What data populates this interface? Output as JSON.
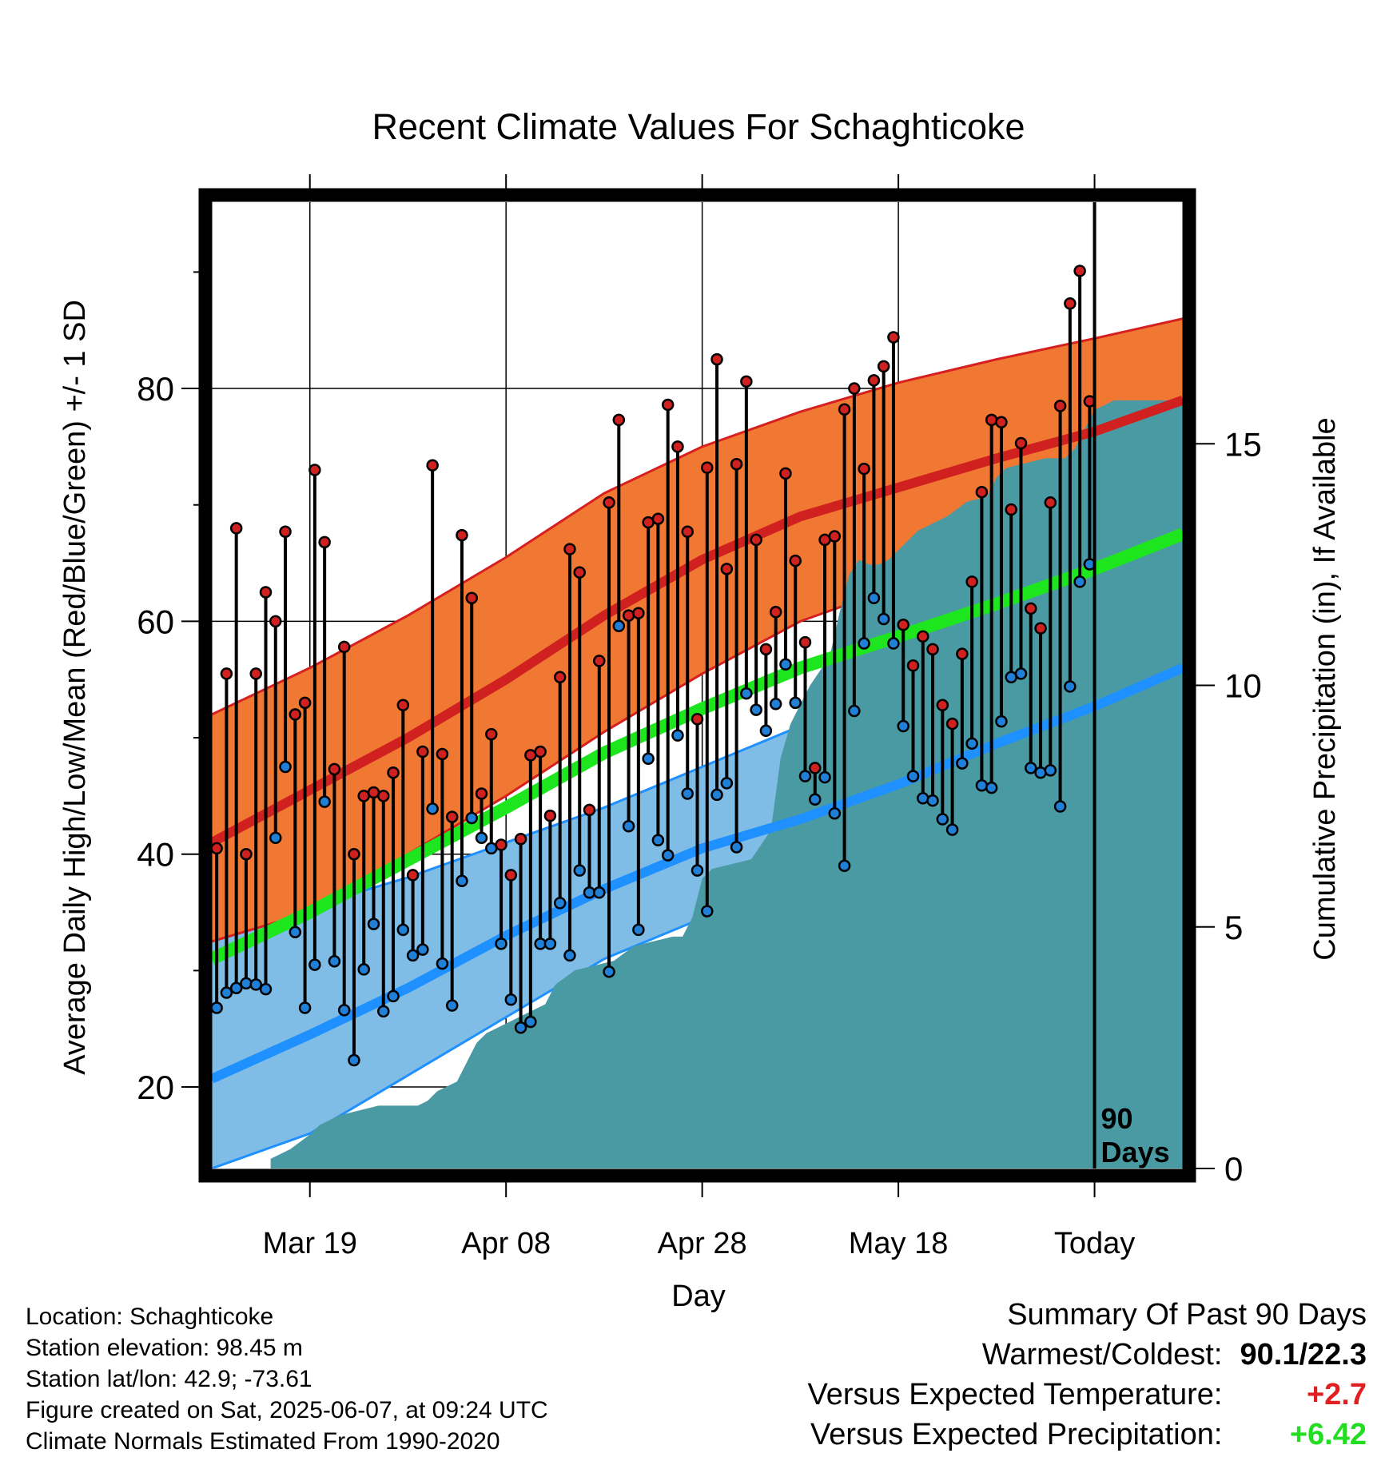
{
  "chart_data": {
    "type": "line",
    "title": "Recent Climate Values For Schaghticoke",
    "xlabel": "Day",
    "ylabel": "Average Daily High/Low/Mean (Red/Blue/Green) +/- 1 SD",
    "y2label": "Cumulative Precipitation (in), If Available",
    "x_ticks": [
      {
        "day": 10,
        "label": "Mar 19"
      },
      {
        "day": 30,
        "label": "Apr 08"
      },
      {
        "day": 50,
        "label": "Apr 28"
      },
      {
        "day": 70,
        "label": "May 18"
      },
      {
        "day": 90,
        "label": "Today"
      }
    ],
    "xlim": [
      0,
      99
    ],
    "ylim": [
      13,
      96
    ],
    "y_ticks": [
      20,
      40,
      60,
      80
    ],
    "y2lim": [
      0,
      20
    ],
    "y2_ticks": [
      0,
      5,
      10,
      15
    ],
    "grid": true,
    "today_marker": {
      "day": 90,
      "label_line1": "90",
      "label_line2": "Days"
    },
    "normals": {
      "days": [
        0,
        10,
        20,
        30,
        40,
        50,
        60,
        70,
        80,
        90,
        99
      ],
      "high_mean": [
        41,
        45.5,
        50,
        55,
        60.5,
        65.3,
        69,
        71.5,
        74,
        76.3,
        79
      ],
      "high_upper": [
        52,
        56,
        60.5,
        65.5,
        71,
        75,
        78,
        80.5,
        82.5,
        84.3,
        86
      ],
      "high_lower": [
        32.5,
        35,
        40,
        45,
        50.5,
        55.5,
        60,
        63,
        66,
        68.5,
        71.5
      ],
      "mean": [
        31,
        35,
        39.5,
        44,
        48.7,
        52.5,
        56,
        58.7,
        61.5,
        64.5,
        67.5
      ],
      "low_mean": [
        20.7,
        24.5,
        28.5,
        33,
        37,
        40.5,
        43,
        46,
        49.5,
        52.7,
        56
      ],
      "low_upper": [
        33.5,
        35.5,
        38,
        41,
        44,
        47.5,
        51,
        54.5,
        57,
        59.7,
        62.5
      ],
      "low_lower": [
        13,
        16,
        21,
        26,
        31,
        34.5,
        38,
        41,
        44,
        47,
        50
      ]
    },
    "series": [
      {
        "name": "High",
        "color": "#d02020",
        "values": [
          40.5,
          55.5,
          68,
          40,
          55.5,
          62.5,
          60,
          67.7,
          52,
          53,
          73,
          66.8,
          47.3,
          57.8,
          40,
          45,
          45.3,
          45,
          47,
          52.8,
          38.2,
          48.8,
          73.4,
          48.6,
          43.2,
          67.4,
          62,
          45.2,
          50.3,
          40.8,
          38.2,
          41.3,
          48.5,
          48.8,
          43.3,
          55.2,
          66.2,
          64.2,
          43.8,
          56.6,
          70.2,
          77.3,
          60.5,
          60.7,
          68.5,
          68.8,
          78.6,
          75,
          67.7,
          51.6,
          73.2,
          82.5,
          64.5,
          73.5,
          80.6,
          67,
          57.6,
          60.8,
          72.7,
          65.2,
          58.2,
          47.4,
          67,
          67.3,
          78.2,
          80,
          73.1,
          80.7,
          81.9,
          84.4,
          59.7,
          56.2,
          58.7,
          57.6,
          52.8,
          51.2,
          57.2,
          63.4,
          71.1,
          77.3,
          77.1,
          69.6,
          75.3,
          61.1,
          59.4,
          70.2,
          78.5,
          87.3,
          90.1,
          78.9
        ]
      },
      {
        "name": "Low",
        "color": "#2080d8",
        "values": [
          26.8,
          28.1,
          28.5,
          28.9,
          28.8,
          28.4,
          41.4,
          47.5,
          33.3,
          26.8,
          30.5,
          44.5,
          30.8,
          26.6,
          22.3,
          30.1,
          34,
          26.5,
          27.8,
          33.5,
          31.3,
          31.8,
          43.9,
          30.6,
          27,
          37.7,
          43.1,
          41.4,
          40.5,
          32.3,
          27.5,
          25.1,
          25.6,
          32.3,
          32.3,
          35.8,
          31.3,
          38.6,
          36.7,
          36.7,
          29.9,
          59.6,
          42.4,
          33.5,
          48.2,
          41.2,
          39.9,
          50.2,
          45.2,
          38.6,
          35.1,
          45.1,
          46.1,
          40.6,
          53.8,
          52.4,
          50.6,
          52.9,
          56.3,
          53,
          46.7,
          44.7,
          46.6,
          43.5,
          39,
          52.3,
          58.1,
          62,
          60.2,
          58.1,
          51,
          46.7,
          44.8,
          44.6,
          43,
          42.1,
          47.8,
          49.5,
          45.9,
          45.7,
          51.4,
          55.2,
          55.5,
          47.4,
          47,
          47.2,
          44.1,
          54.4,
          63.4,
          64.9
        ]
      },
      {
        "name": "Cumulative Precipitation",
        "color": "#4a9aa4",
        "days": [
          6,
          8,
          10,
          11,
          13,
          15,
          17,
          19,
          21,
          22,
          23,
          25,
          27,
          28,
          30,
          32,
          34,
          35,
          37,
          39,
          41,
          43,
          45,
          47,
          48,
          49,
          50,
          51,
          53,
          55,
          57,
          58,
          59,
          61,
          63,
          64,
          65,
          66,
          67,
          68,
          69,
          70,
          71,
          72,
          73,
          75,
          77,
          79,
          80,
          81,
          83,
          85,
          87,
          88,
          89,
          90,
          92,
          99
        ],
        "values": [
          0.2,
          0.4,
          0.7,
          0.9,
          1.1,
          1.2,
          1.3,
          1.3,
          1.3,
          1.4,
          1.6,
          1.8,
          2.6,
          2.8,
          3,
          3.2,
          3.4,
          3.8,
          4.1,
          4.2,
          4.3,
          4.6,
          4.7,
          4.8,
          4.8,
          5.2,
          6,
          6.2,
          6.3,
          6.4,
          7,
          8.5,
          9.2,
          10,
          10.6,
          11.5,
          12.3,
          12.6,
          12.5,
          12.5,
          12.6,
          12.8,
          13,
          13.2,
          13.3,
          13.5,
          13.8,
          13.9,
          14.3,
          14.5,
          14.6,
          14.7,
          14.7,
          14.9,
          15.3,
          15.7,
          15.9,
          15.9
        ]
      }
    ]
  },
  "info": {
    "location": "Location: Schaghticoke",
    "elevation": "Station elevation: 98.45 m",
    "latlon": "Station lat/lon: 42.9; -73.61",
    "created": "Figure created on Sat, 2025-06-07, at 09:24 UTC",
    "normals": "Climate Normals Estimated From 1990-2020"
  },
  "summary": {
    "heading": "Summary Of Past 90 Days",
    "warmest_label": "Warmest/Coldest:",
    "warmest_value": "90.1/22.3",
    "temp_label": "Versus Expected Temperature:",
    "temp_value": "+2.7",
    "temp_color": "#e02020",
    "precip_label": "Versus Expected Precipitation:",
    "precip_value": "+6.42",
    "precip_color": "#22dd22"
  }
}
